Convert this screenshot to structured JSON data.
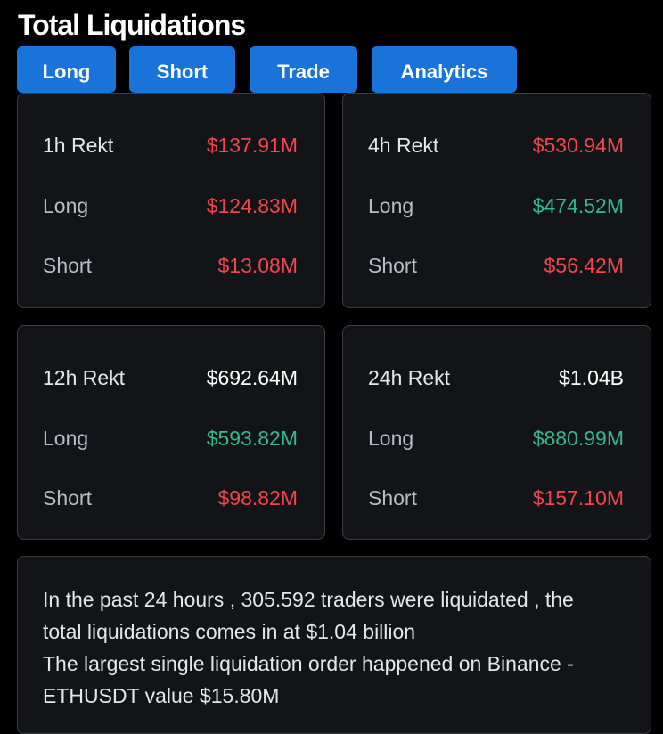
{
  "header": {
    "title": "Total Liquidations"
  },
  "tabs": [
    {
      "label": "Long"
    },
    {
      "label": "Short"
    },
    {
      "label": "Trade"
    },
    {
      "label": "Analytics"
    }
  ],
  "colors": {
    "background": "#000000",
    "card": "#121418",
    "tab": "#1a73d9",
    "red": "#f2454c",
    "green": "#34b98a"
  },
  "cards": [
    {
      "title": "1h Rekt",
      "total": "$137.91M",
      "total_color": "red",
      "long_label": "Long",
      "long": "$124.83M",
      "long_color": "red",
      "short_label": "Short",
      "short": "$13.08M",
      "short_color": "red"
    },
    {
      "title": "4h Rekt",
      "total": "$530.94M",
      "total_color": "red",
      "long_label": "Long",
      "long": "$474.52M",
      "long_color": "green",
      "short_label": "Short",
      "short": "$56.42M",
      "short_color": "red"
    },
    {
      "title": "12h Rekt",
      "total": "$692.64M",
      "total_color": "white",
      "long_label": "Long",
      "long": "$593.82M",
      "long_color": "green",
      "short_label": "Short",
      "short": "$98.82M",
      "short_color": "red"
    },
    {
      "title": "24h Rekt",
      "total": "$1.04B",
      "total_color": "white",
      "long_label": "Long",
      "long": "$880.99M",
      "long_color": "green",
      "short_label": "Short",
      "short": "$157.10M",
      "short_color": "red"
    }
  ],
  "summary": {
    "lines": [
      "In the past 24 hours , 305.592 traders were liquidated , the",
      "total liquidations comes in at $1.04 billion",
      "The largest single liquidation order happened on Binance -",
      "ETHUSDT value $15.80M"
    ]
  }
}
